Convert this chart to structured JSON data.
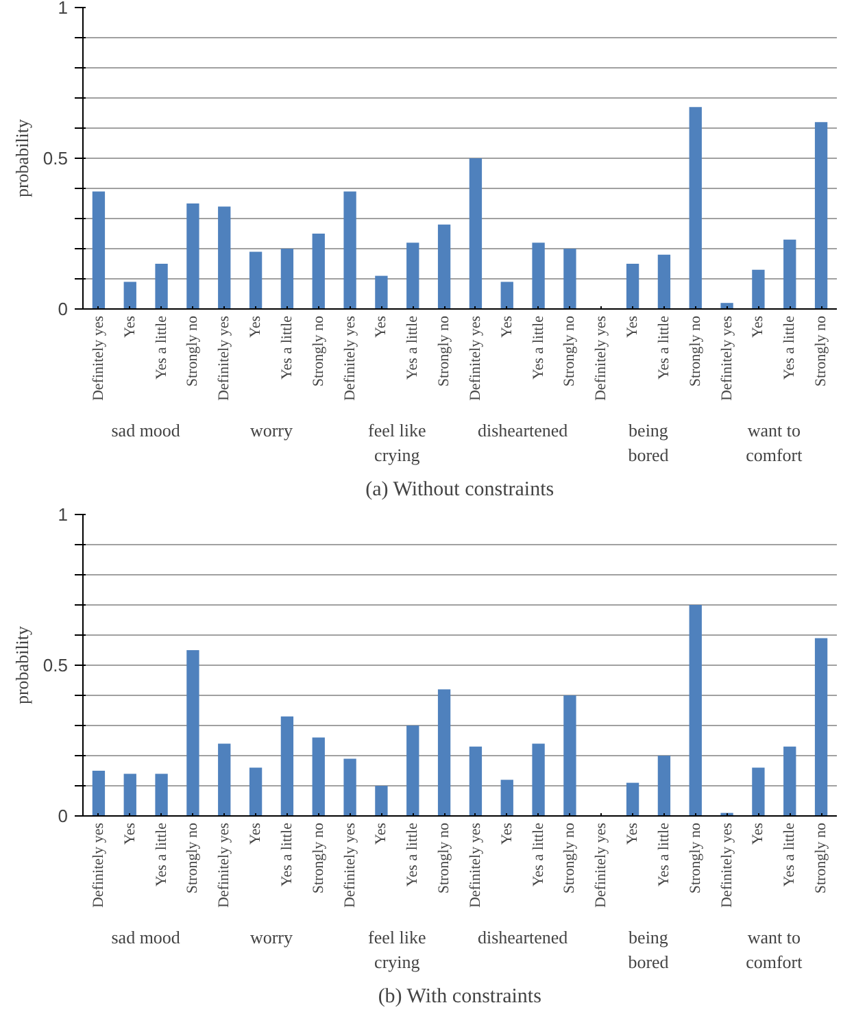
{
  "chart_data": [
    {
      "type": "bar",
      "title": "(a) Without constraints",
      "ylabel": "probability",
      "categories": [
        "Definitely yes",
        "Yes",
        "Yes a little",
        "Strongly no",
        "Definitely yes",
        "Yes",
        "Yes a little",
        "Strongly no",
        "Definitely yes",
        "Yes",
        "Yes a little",
        "Strongly no",
        "Definitely yes",
        "Yes",
        "Yes a little",
        "Strongly no",
        "Definitely yes",
        "Yes",
        "Yes a little",
        "Strongly no",
        "Definitely yes",
        "Yes",
        "Yes a little",
        "Strongly no"
      ],
      "values": [
        0.39,
        0.09,
        0.15,
        0.35,
        0.34,
        0.19,
        0.2,
        0.25,
        0.39,
        0.11,
        0.22,
        0.28,
        0.5,
        0.09,
        0.22,
        0.2,
        0,
        0.15,
        0.18,
        0.67,
        0.02,
        0.13,
        0.23,
        0.62
      ],
      "annotations": [
        "sad mood",
        "worry",
        "feel like crying",
        "disheartened",
        "being bored",
        "want to comfort"
      ],
      "color": "#4f81bd",
      "ylim": [
        0,
        1
      ],
      "yticks": [
        0,
        {
          "value": 0.1,
          "label": null
        },
        {
          "value": 0.2,
          "label": null
        },
        {
          "value": 0.3,
          "label": null
        },
        {
          "value": 0.4,
          "label": null
        },
        0.5,
        {
          "value": 0.6,
          "label": null
        },
        {
          "value": 0.7,
          "label": null
        },
        {
          "value": 0.8,
          "label": null
        },
        {
          "value": 0.9,
          "label": null
        },
        1
      ],
      "grid": "y"
    },
    {
      "type": "bar",
      "title": "(b) With constraints",
      "ylabel": "probability",
      "categories": [
        "Definitely yes",
        "Yes",
        "Yes a little",
        "Strongly no",
        "Definitely yes",
        "Yes",
        "Yes a little",
        "Strongly no",
        "Definitely yes",
        "Yes",
        "Yes a little",
        "Strongly no",
        "Definitely yes",
        "Yes",
        "Yes a little",
        "Strongly no",
        "Definitely yes",
        "Yes",
        "Yes a little",
        "Strongly no",
        "Definitely yes",
        "Yes",
        "Yes a little",
        "Strongly no"
      ],
      "values": [
        0.15,
        0.14,
        0.14,
        0.55,
        0.24,
        0.16,
        0.33,
        0.26,
        0.19,
        0.1,
        0.3,
        0.42,
        0.23,
        0.12,
        0.24,
        0.4,
        0,
        0.11,
        0.2,
        0.7,
        0.01,
        0.16,
        0.23,
        0.59
      ],
      "annotations": [
        "sad mood",
        "worry",
        "feel like crying",
        "disheartened",
        "being bored",
        "want to comfort"
      ],
      "color": "#4f81bd",
      "ylim": [
        0,
        1
      ],
      "yticks": [
        0,
        {
          "value": 0.1,
          "label": null
        },
        {
          "value": 0.2,
          "label": null
        },
        {
          "value": 0.3,
          "label": null
        },
        {
          "value": 0.4,
          "label": null
        },
        0.5,
        {
          "value": 0.6,
          "label": null
        },
        {
          "value": 0.7,
          "label": null
        },
        {
          "value": 0.8,
          "label": null
        },
        {
          "value": 0.9,
          "label": null
        },
        1
      ],
      "grid": "y"
    }
  ]
}
